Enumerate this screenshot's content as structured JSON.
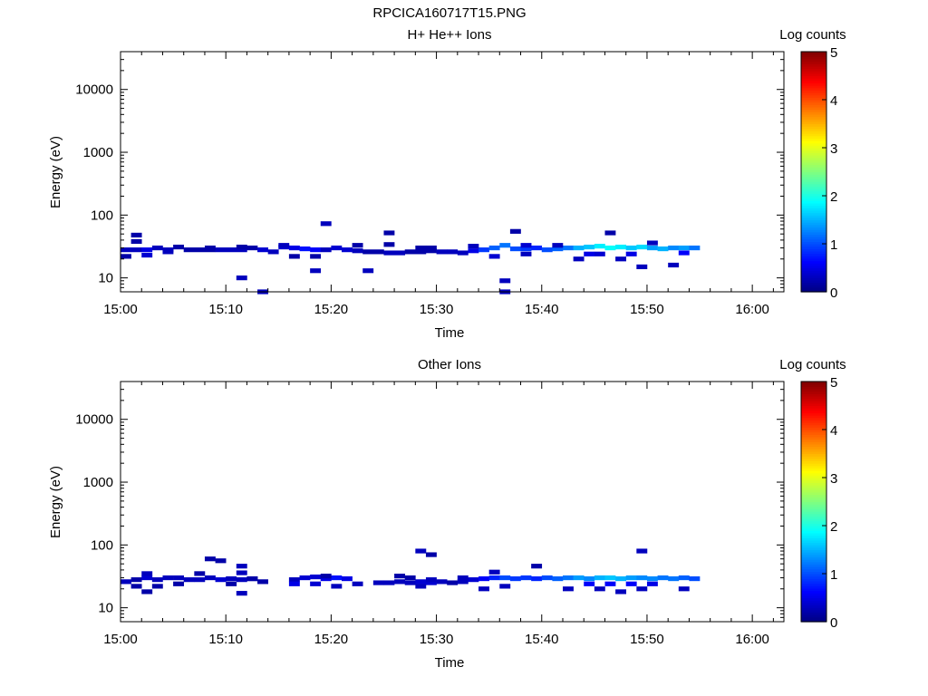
{
  "figure_title": "RPCICA160717T15.PNG",
  "chart_data": [
    {
      "type": "heatmap",
      "title": "H+ He++ Ions",
      "xlabel": "Time",
      "ylabel": "Energy (eV)",
      "x_ticks": [
        "15:00",
        "15:10",
        "15:20",
        "15:30",
        "15:40",
        "15:50",
        "16:00"
      ],
      "xlim_minutes": [
        0,
        63
      ],
      "y_scale": "log",
      "ylim": [
        6,
        40000
      ],
      "y_ticks": [
        {
          "value": 10,
          "label": "10"
        },
        {
          "value": 100,
          "label": "100"
        },
        {
          "value": 1000,
          "label": "1000"
        },
        {
          "value": 10000,
          "label": "10000"
        }
      ],
      "colorbar": {
        "label": "Log counts",
        "min": 0,
        "max": 5,
        "ticks": [
          "0",
          "1",
          "2",
          "3",
          "4",
          "5"
        ]
      },
      "grid": false,
      "cells": [
        [
          0,
          1,
          28,
          0.3
        ],
        [
          1,
          2,
          28,
          0.3
        ],
        [
          2,
          3,
          28,
          0.5
        ],
        [
          3,
          4,
          30,
          0.3
        ],
        [
          4,
          5,
          28,
          0.3
        ],
        [
          5,
          6,
          31,
          0.2
        ],
        [
          6,
          9,
          28,
          0.2
        ],
        [
          9,
          12,
          28,
          0.3
        ],
        [
          12,
          13,
          30,
          0.2
        ],
        [
          13,
          14,
          28,
          0.4
        ],
        [
          14,
          15,
          26,
          0.3
        ],
        [
          15,
          16,
          31,
          0.4
        ],
        [
          16,
          17,
          30,
          0.5
        ],
        [
          17,
          18,
          29,
          0.7
        ],
        [
          18,
          19,
          28,
          0.6
        ],
        [
          19,
          20,
          28,
          0.3
        ],
        [
          20,
          21,
          30,
          0.4
        ],
        [
          21,
          22,
          28,
          0.4
        ],
        [
          22,
          23,
          27,
          0.3
        ],
        [
          23,
          25,
          26,
          0.2
        ],
        [
          25,
          27,
          25,
          0.3
        ],
        [
          27,
          29,
          26,
          0.2
        ],
        [
          29,
          30,
          27,
          0.2
        ],
        [
          30,
          31,
          26,
          0.3
        ],
        [
          31,
          32,
          26,
          0.3
        ],
        [
          32,
          33,
          25,
          0.3
        ],
        [
          33,
          34,
          27,
          0.5
        ],
        [
          34,
          35,
          28,
          0.9
        ],
        [
          35,
          36,
          30,
          1.1
        ],
        [
          36,
          37,
          33,
          1.2
        ],
        [
          37,
          38,
          29,
          1.0
        ],
        [
          38,
          39,
          29,
          0.9
        ],
        [
          39,
          40,
          30,
          0.8
        ],
        [
          40,
          41,
          28,
          1.0
        ],
        [
          41,
          42,
          29,
          1.1
        ],
        [
          42,
          43,
          30,
          1.2
        ],
        [
          43,
          44,
          30,
          1.5
        ],
        [
          44,
          45,
          31,
          1.6
        ],
        [
          45,
          46,
          32,
          1.8
        ],
        [
          46,
          47,
          30,
          1.9
        ],
        [
          47,
          48,
          31,
          1.8
        ],
        [
          48,
          49,
          30,
          1.6
        ],
        [
          49,
          50,
          31,
          1.7
        ],
        [
          50,
          51,
          30,
          1.4
        ],
        [
          51,
          52,
          29,
          1.5
        ],
        [
          52,
          53,
          30,
          1.3
        ],
        [
          53,
          54,
          30,
          1.4
        ],
        [
          54,
          55,
          30,
          1.2
        ],
        [
          0,
          1,
          22,
          0.2
        ],
        [
          1,
          2,
          48,
          0.2
        ],
        [
          1,
          2,
          38,
          0.2
        ],
        [
          2,
          3,
          23,
          0.4
        ],
        [
          4,
          5,
          26,
          0.3
        ],
        [
          8,
          9,
          30,
          0.2
        ],
        [
          11,
          12,
          31,
          0.2
        ],
        [
          11,
          12,
          10,
          0.3
        ],
        [
          13,
          14,
          6,
          0.3
        ],
        [
          15,
          16,
          33,
          0.3
        ],
        [
          16,
          17,
          22,
          0.2
        ],
        [
          18,
          19,
          13,
          0.3
        ],
        [
          18,
          19,
          22,
          0.2
        ],
        [
          19,
          20,
          73,
          0.3
        ],
        [
          22,
          23,
          33,
          0.2
        ],
        [
          23,
          24,
          13,
          0.3
        ],
        [
          25,
          26,
          52,
          0.2
        ],
        [
          25,
          26,
          34,
          0.2
        ],
        [
          28,
          29,
          30,
          0.2
        ],
        [
          29,
          30,
          30,
          0.2
        ],
        [
          33,
          34,
          32,
          0.3
        ],
        [
          35,
          36,
          22,
          0.4
        ],
        [
          36,
          37,
          9,
          0.3
        ],
        [
          36,
          37,
          6,
          0.3
        ],
        [
          37,
          38,
          55,
          0.2
        ],
        [
          38,
          39,
          33,
          0.4
        ],
        [
          38,
          39,
          24,
          0.3
        ],
        [
          41,
          42,
          33,
          0.3
        ],
        [
          43,
          44,
          20,
          0.3
        ],
        [
          45,
          46,
          24,
          0.4
        ],
        [
          46,
          47,
          52,
          0.2
        ],
        [
          47,
          48,
          20,
          0.3
        ],
        [
          49,
          50,
          15,
          0.3
        ],
        [
          50,
          51,
          36,
          0.3
        ],
        [
          52,
          53,
          16,
          0.3
        ],
        [
          44,
          45,
          24,
          0.5
        ],
        [
          48,
          49,
          24,
          0.5
        ],
        [
          53,
          54,
          25,
          0.6
        ]
      ]
    },
    {
      "type": "heatmap",
      "title": "Other Ions",
      "xlabel": "Time",
      "ylabel": "Energy (eV)",
      "x_ticks": [
        "15:00",
        "15:10",
        "15:20",
        "15:30",
        "15:40",
        "15:50",
        "16:00"
      ],
      "xlim_minutes": [
        0,
        63
      ],
      "y_scale": "log",
      "ylim": [
        6,
        40000
      ],
      "y_ticks": [
        {
          "value": 10,
          "label": "10"
        },
        {
          "value": 100,
          "label": "100"
        },
        {
          "value": 1000,
          "label": "1000"
        },
        {
          "value": 10000,
          "label": "10000"
        }
      ],
      "colorbar": {
        "label": "Log counts",
        "min": 0,
        "max": 5,
        "ticks": [
          "0",
          "1",
          "2",
          "3",
          "4",
          "5"
        ]
      },
      "grid": false,
      "cells": [
        [
          0,
          1,
          26,
          0.3
        ],
        [
          1,
          2,
          28,
          0.2
        ],
        [
          2,
          3,
          30,
          0.4
        ],
        [
          3,
          4,
          28,
          0.3
        ],
        [
          4,
          5,
          30,
          0.3
        ],
        [
          5,
          6,
          30,
          0.3
        ],
        [
          6,
          7,
          28,
          0.3
        ],
        [
          7,
          8,
          28,
          0.3
        ],
        [
          8,
          9,
          30,
          0.3
        ],
        [
          9,
          10,
          28,
          0.4
        ],
        [
          10,
          11,
          29,
          0.3
        ],
        [
          11,
          12,
          28,
          0.3
        ],
        [
          12,
          13,
          29,
          0.2
        ],
        [
          16,
          17,
          28,
          0.3
        ],
        [
          17,
          18,
          30,
          0.4
        ],
        [
          18,
          19,
          31,
          0.4
        ],
        [
          19,
          20,
          29,
          0.5
        ],
        [
          20,
          21,
          30,
          0.7
        ],
        [
          21,
          22,
          29,
          0.5
        ],
        [
          24,
          25,
          25,
          0.3
        ],
        [
          25,
          26,
          25,
          0.3
        ],
        [
          26,
          27,
          26,
          0.3
        ],
        [
          27,
          28,
          25,
          0.3
        ],
        [
          28,
          29,
          26,
          0.4
        ],
        [
          29,
          30,
          25,
          0.4
        ],
        [
          30,
          31,
          26,
          0.3
        ],
        [
          31,
          32,
          25,
          0.2
        ],
        [
          32,
          33,
          26,
          0.3
        ],
        [
          33,
          34,
          28,
          0.4
        ],
        [
          34,
          35,
          29,
          0.6
        ],
        [
          35,
          36,
          30,
          0.8
        ],
        [
          36,
          37,
          30,
          1.0
        ],
        [
          37,
          38,
          29,
          0.9
        ],
        [
          38,
          39,
          30,
          0.9
        ],
        [
          39,
          40,
          29,
          0.8
        ],
        [
          40,
          41,
          30,
          1.0
        ],
        [
          41,
          42,
          29,
          1.1
        ],
        [
          42,
          43,
          30,
          1.2
        ],
        [
          43,
          44,
          30,
          1.4
        ],
        [
          44,
          45,
          29,
          1.3
        ],
        [
          45,
          46,
          30,
          1.5
        ],
        [
          46,
          47,
          30,
          1.6
        ],
        [
          47,
          48,
          29,
          1.5
        ],
        [
          48,
          49,
          30,
          1.4
        ],
        [
          49,
          50,
          30,
          1.3
        ],
        [
          50,
          51,
          29,
          1.3
        ],
        [
          51,
          52,
          30,
          1.2
        ],
        [
          52,
          53,
          29,
          1.2
        ],
        [
          53,
          54,
          30,
          1.1
        ],
        [
          54,
          55,
          29,
          1.0
        ],
        [
          1,
          2,
          22,
          0.2
        ],
        [
          2,
          3,
          18,
          0.2
        ],
        [
          2,
          3,
          35,
          0.3
        ],
        [
          3,
          4,
          22,
          0.2
        ],
        [
          5,
          6,
          24,
          0.2
        ],
        [
          7,
          8,
          35,
          0.2
        ],
        [
          8,
          9,
          60,
          0.2
        ],
        [
          9,
          10,
          56,
          0.2
        ],
        [
          10,
          11,
          24,
          0.2
        ],
        [
          11,
          12,
          46,
          0.3
        ],
        [
          11,
          12,
          36,
          0.3
        ],
        [
          11,
          12,
          17,
          0.3
        ],
        [
          12,
          13,
          29,
          0.2
        ],
        [
          13,
          14,
          26,
          0.2
        ],
        [
          16,
          17,
          24,
          0.5
        ],
        [
          18,
          19,
          24,
          0.4
        ],
        [
          19,
          20,
          32,
          0.2
        ],
        [
          20,
          21,
          22,
          0.3
        ],
        [
          22,
          23,
          24,
          0.3
        ],
        [
          26,
          27,
          32,
          0.2
        ],
        [
          27,
          28,
          30,
          0.2
        ],
        [
          28,
          29,
          80,
          0.3
        ],
        [
          28,
          29,
          22,
          0.3
        ],
        [
          29,
          30,
          70,
          0.2
        ],
        [
          29,
          30,
          28,
          0.3
        ],
        [
          32,
          33,
          30,
          0.3
        ],
        [
          34,
          35,
          20,
          0.3
        ],
        [
          35,
          36,
          37,
          0.3
        ],
        [
          36,
          37,
          22,
          0.3
        ],
        [
          39,
          40,
          46,
          0.2
        ],
        [
          42,
          43,
          20,
          0.3
        ],
        [
          45,
          46,
          20,
          0.3
        ],
        [
          47,
          48,
          18,
          0.3
        ],
        [
          49,
          50,
          80,
          0.3
        ],
        [
          49,
          50,
          20,
          0.3
        ],
        [
          53,
          54,
          20,
          0.3
        ],
        [
          44,
          45,
          24,
          0.6
        ],
        [
          46,
          47,
          24,
          0.6
        ],
        [
          48,
          49,
          24,
          0.6
        ],
        [
          50,
          51,
          24,
          0.5
        ]
      ]
    }
  ]
}
